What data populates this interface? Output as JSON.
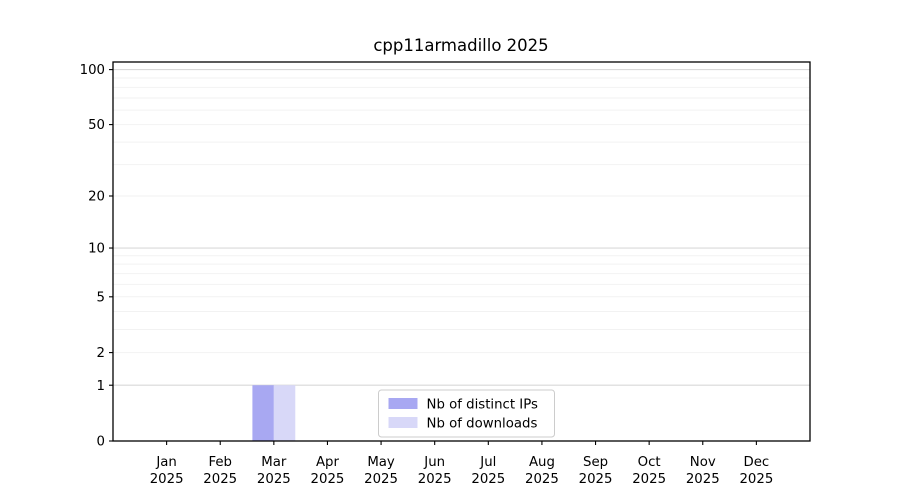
{
  "chart_data": {
    "type": "bar",
    "title": "cpp11armadillo 2025",
    "x": {
      "months": [
        "Jan",
        "Feb",
        "Mar",
        "Apr",
        "May",
        "Jun",
        "Jul",
        "Aug",
        "Sep",
        "Oct",
        "Nov",
        "Dec"
      ],
      "year": "2025"
    },
    "series": [
      {
        "name": "Nb of distinct IPs",
        "color": "#a8a8f2",
        "values": [
          0,
          0,
          1,
          0,
          0,
          0,
          0,
          0,
          0,
          0,
          0,
          0
        ]
      },
      {
        "name": "Nb of downloads",
        "color": "#d8d8f8",
        "values": [
          0,
          0,
          1,
          0,
          0,
          0,
          0,
          0,
          0,
          0,
          0,
          0
        ]
      }
    ],
    "yscale": "log1p",
    "ylim": [
      0,
      110
    ],
    "ytick_labels": [
      0,
      1,
      2,
      5,
      10,
      20,
      50,
      100
    ],
    "grid": {
      "major_lines": [
        1,
        10,
        100
      ],
      "minor_lines": [
        2,
        3,
        4,
        5,
        6,
        7,
        8,
        9,
        20,
        30,
        40,
        50,
        60,
        70,
        80,
        90
      ],
      "major_color": "#d9d9d9",
      "minor_color": "#f2f2f2"
    },
    "legend": {
      "position": "lower center",
      "border_color": "#cccccc",
      "background": "#ffffff"
    },
    "axis_color": "#000000",
    "background": "#ffffff"
  }
}
